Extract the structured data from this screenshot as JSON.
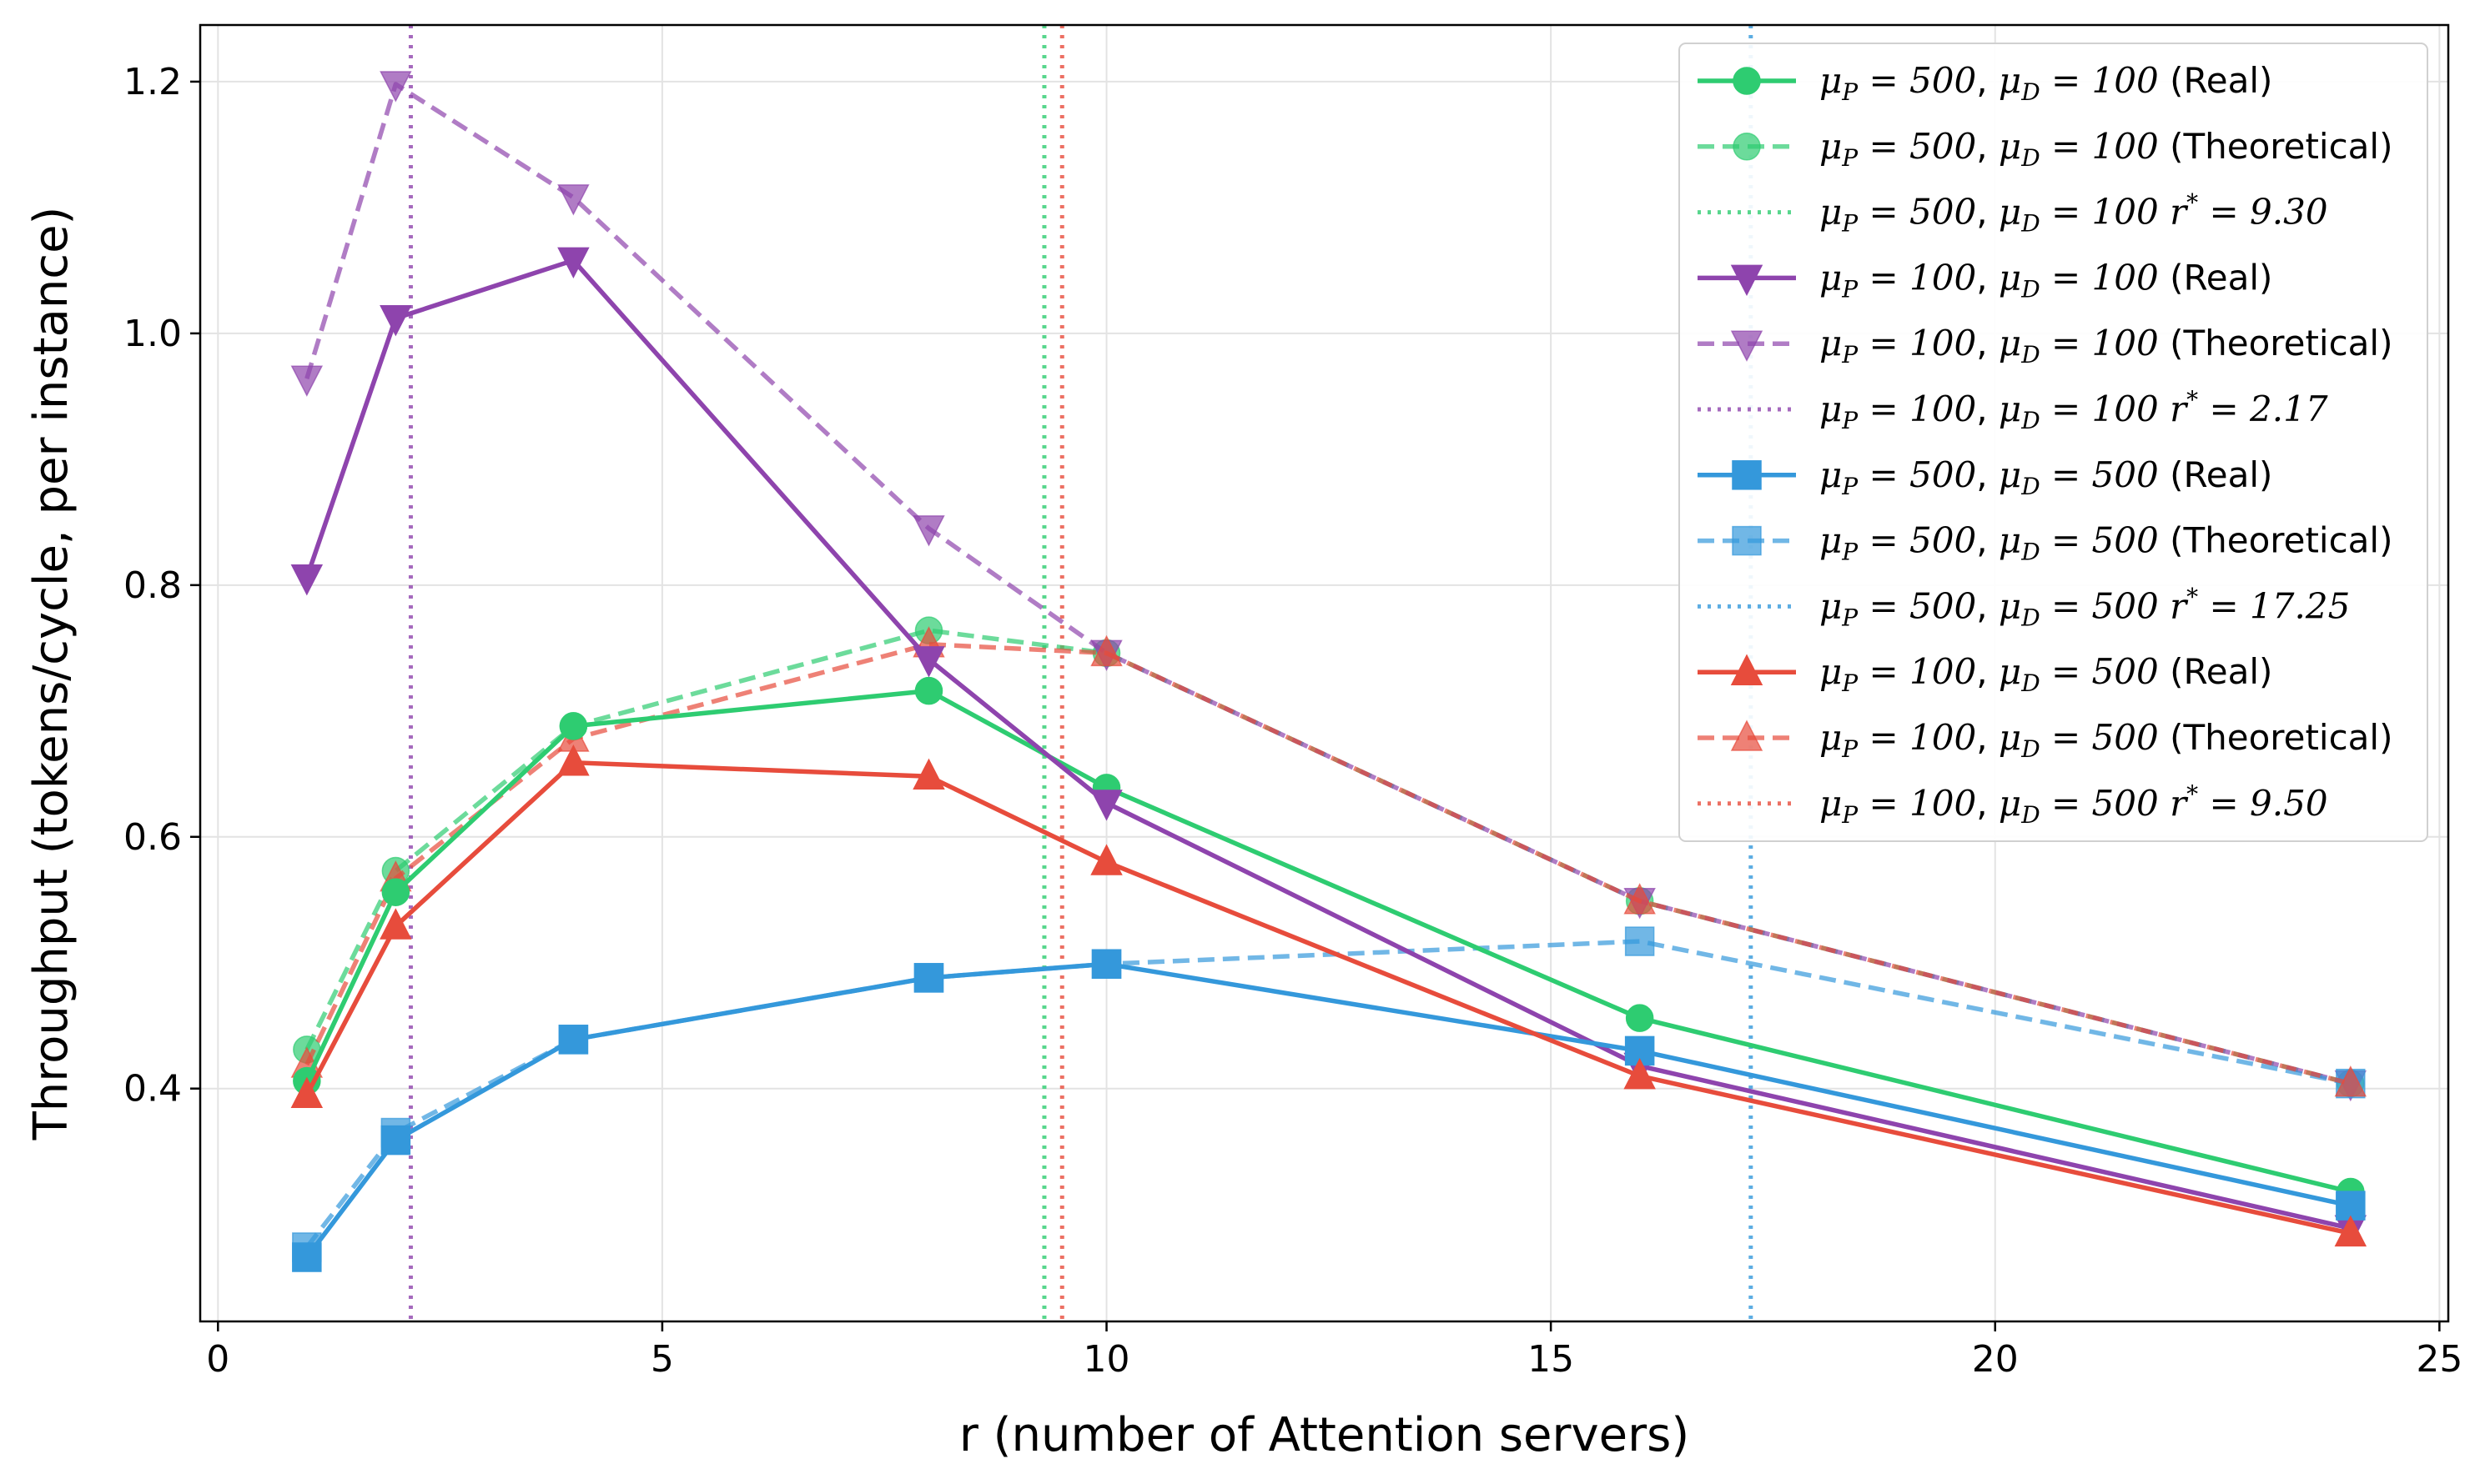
{
  "chart_data": {
    "type": "line",
    "title": "",
    "xlabel": "r (number of Attention servers)",
    "ylabel": "Throughput (tokens/cycle, per instance)",
    "xlim": [
      -0.2,
      25.1
    ],
    "ylim": [
      0.215,
      1.245
    ],
    "xticks": [
      0,
      5,
      10,
      15,
      20,
      25
    ],
    "xtick_labels": [
      "0",
      "5",
      "10",
      "15",
      "20",
      "25"
    ],
    "yticks": [
      0.4,
      0.6,
      0.8,
      1.0,
      1.2
    ],
    "ytick_labels": [
      "0.4",
      "0.6",
      "0.8",
      "1.0",
      "1.2"
    ],
    "grid": true,
    "legend_position": "top-right",
    "x": [
      1,
      2,
      4,
      8,
      10,
      16,
      24
    ],
    "series": [
      {
        "key": "p500d100_real",
        "name": "(Real)",
        "mu_p": "500",
        "mu_d": "100",
        "kind": "real",
        "color": "#2ecc71",
        "marker": "circle",
        "values": [
          0.406,
          0.556,
          0.688,
          0.716,
          0.639,
          0.456,
          0.318
        ]
      },
      {
        "key": "p500d100_theo",
        "name": "(Theoretical)",
        "mu_p": "500",
        "mu_d": "100",
        "kind": "theoretical",
        "color": "#2ecc71",
        "marker": "circle",
        "values": [
          0.431,
          0.573,
          0.688,
          0.764,
          0.746,
          0.549,
          0.404
        ]
      },
      {
        "key": "p500d100_rstar",
        "name": "r* = 9.30",
        "mu_p": "500",
        "mu_d": "100",
        "kind": "rstar",
        "color": "#2ecc71",
        "value": 9.3,
        "rstar_text": "9.30"
      },
      {
        "key": "p100d100_real",
        "name": "(Real)",
        "mu_p": "100",
        "mu_d": "100",
        "kind": "real",
        "color": "#8e44ad",
        "marker": "triangle-down",
        "values": [
          0.806,
          1.012,
          1.058,
          0.741,
          0.627,
          0.418,
          0.289
        ]
      },
      {
        "key": "p100d100_theo",
        "name": "(Theoretical)",
        "mu_p": "100",
        "mu_d": "100",
        "kind": "theoretical",
        "color": "#8e44ad",
        "marker": "triangle-down",
        "values": [
          0.964,
          1.198,
          1.108,
          0.845,
          0.746,
          0.549,
          0.404
        ]
      },
      {
        "key": "p100d100_rstar",
        "name": "r* = 2.17",
        "mu_p": "100",
        "mu_d": "100",
        "kind": "rstar",
        "color": "#8e44ad",
        "value": 2.17,
        "rstar_text": "2.17"
      },
      {
        "key": "p500d500_real",
        "name": "(Real)",
        "mu_p": "500",
        "mu_d": "500",
        "kind": "real",
        "color": "#3498db",
        "marker": "square",
        "values": [
          0.266,
          0.359,
          0.439,
          0.488,
          0.499,
          0.43,
          0.307
        ]
      },
      {
        "key": "p500d500_theo",
        "name": "(Theoretical)",
        "mu_p": "500",
        "mu_d": "500",
        "kind": "theoretical",
        "color": "#3498db",
        "marker": "square",
        "values": [
          0.274,
          0.365,
          0.439,
          0.488,
          0.499,
          0.517,
          0.404
        ]
      },
      {
        "key": "p500d500_rstar",
        "name": "r* = 17.25",
        "mu_p": "500",
        "mu_d": "500",
        "kind": "rstar",
        "color": "#3498db",
        "value": 17.25,
        "rstar_text": "17.25"
      },
      {
        "key": "p100d500_real",
        "name": "(Real)",
        "mu_p": "100",
        "mu_d": "500",
        "kind": "real",
        "color": "#e74c3c",
        "marker": "triangle-up",
        "values": [
          0.395,
          0.529,
          0.659,
          0.648,
          0.58,
          0.41,
          0.285
        ]
      },
      {
        "key": "p100d500_theo",
        "name": "(Theoretical)",
        "mu_p": "100",
        "mu_d": "500",
        "kind": "theoretical",
        "color": "#e74c3c",
        "marker": "triangle-up",
        "values": [
          0.419,
          0.567,
          0.678,
          0.753,
          0.746,
          0.549,
          0.404
        ]
      },
      {
        "key": "p100d500_rstar",
        "name": "r* = 9.50",
        "mu_p": "100",
        "mu_d": "500",
        "kind": "rstar",
        "color": "#e74c3c",
        "value": 9.5,
        "rstar_text": "9.50"
      }
    ]
  }
}
